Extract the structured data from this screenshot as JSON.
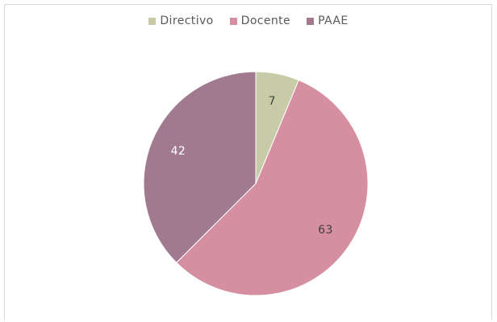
{
  "chart_data": {
    "type": "pie",
    "categories": [
      "Directivo",
      "Docente",
      "PAAE"
    ],
    "values": [
      7,
      63,
      42
    ],
    "colors": [
      "#c7cba8",
      "#d58fa0",
      "#a17a8f"
    ],
    "label_colors": [
      "#404040",
      "#404040",
      "#ffffff"
    ],
    "data_labels": [
      "7",
      "63",
      "42"
    ],
    "legend_position": "top",
    "start_angle": "12 o'clock, clockwise"
  }
}
